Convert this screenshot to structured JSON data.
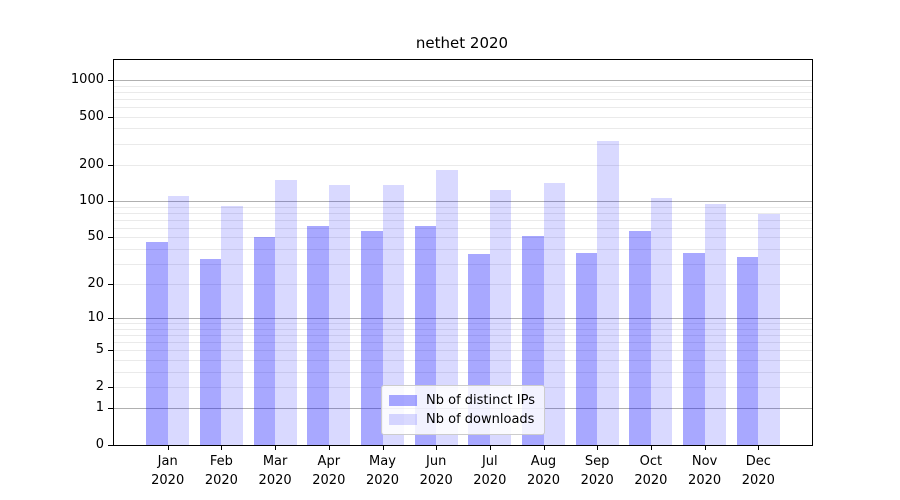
{
  "chart_data": {
    "type": "bar",
    "title": "nethet 2020",
    "categories": [
      "Jan",
      "Feb",
      "Mar",
      "Apr",
      "May",
      "Jun",
      "Jul",
      "Aug",
      "Sep",
      "Oct",
      "Nov",
      "Dec"
    ],
    "x_tick_second_line": "2020",
    "series": [
      {
        "name": "Nb of distinct IPs",
        "color": "rgba(0,0,255,0.34)",
        "values": [
          46,
          33,
          50,
          62,
          57,
          62,
          36,
          51,
          37,
          57,
          37,
          34
        ]
      },
      {
        "name": "Nb of downloads",
        "color": "rgba(0,0,255,0.15)",
        "values": [
          110,
          92,
          150,
          135,
          137,
          182,
          123,
          142,
          315,
          106,
          94,
          79
        ]
      }
    ],
    "yscale": "log1p",
    "y_ticks": [
      0,
      1,
      2,
      5,
      10,
      20,
      50,
      100,
      200,
      500,
      1000
    ],
    "y_major_gridlines": [
      1,
      10,
      100,
      1000
    ],
    "ylim": [
      0,
      1460
    ],
    "xlabel": "",
    "ylabel": "",
    "grid": true,
    "legend_position": "lower center",
    "colors": {
      "grid_major": "#b0b0b0",
      "grid_minor": "#eaeaea",
      "spine": "#000000",
      "background": "#ffffff",
      "text": "#000000"
    }
  }
}
